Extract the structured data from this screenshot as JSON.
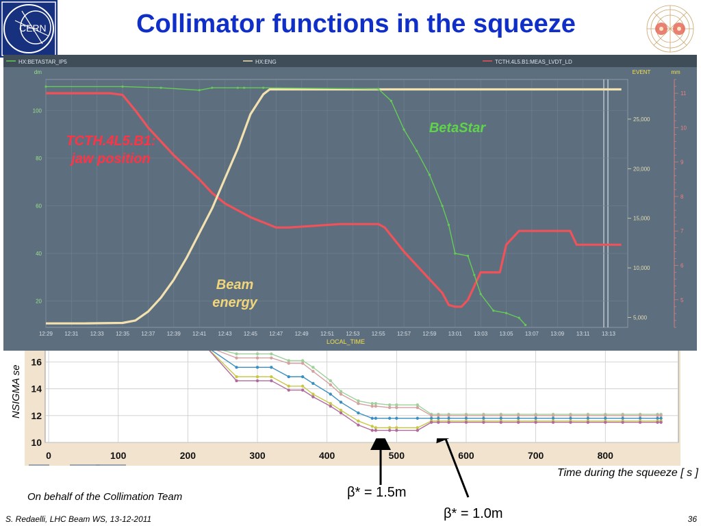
{
  "slide": {
    "title": "Collimator functions in the squeeze",
    "collab": "On behalf of the Collimation Team",
    "footer_left": "S. Redaelli, LHC Beam WS, 13-12-2011",
    "footer_right": "36",
    "beta_annotation_1": "β* = 1.5m",
    "beta_annotation_2": "β* = 1.0m",
    "cern_logo_text": "CERN"
  },
  "colors": {
    "title": "#0f2fc8",
    "chart_bg": "#5d6f7f",
    "chart_frame": "#3f4d59",
    "jaw": "#f0525a",
    "energy": "#f3e2b0",
    "betastar": "#66cc55",
    "axis_text_left": "#9be08a",
    "axis_text_right_mid": "#e6ddb0",
    "axis_text_right": "#f08080",
    "bottom_grid": "#c9c9c9",
    "bottom_frame": "#f2e3cf"
  },
  "chart_data": [
    {
      "type": "line",
      "legend": [
        "HX:BETASTAR_IP5",
        "HX:ENG",
        "TCTH.4L5.B1:MEAS_LVDT_LD"
      ],
      "xlabel": "LOCAL_TIME",
      "x_ticks": [
        "12:29",
        "12:31",
        "12:33",
        "12:35",
        "12:37",
        "12:39",
        "12:41",
        "12:43",
        "12:45",
        "12:47",
        "12:49",
        "12:51",
        "12:53",
        "12:55",
        "12:57",
        "12:59",
        "13:01",
        "13:03",
        "13:05",
        "13:07",
        "13:09",
        "13:11",
        "13:13"
      ],
      "left_axis": {
        "unit": "dm",
        "ticks": [
          20,
          40,
          60,
          80,
          100
        ],
        "range": [
          9,
          113
        ]
      },
      "mid_axis": {
        "unit": "EVENT",
        "ticks": [
          "5,000",
          "10,000",
          "15,000",
          "20,000",
          "25,000"
        ],
        "range": [
          4000,
          29000
        ]
      },
      "right_axis": {
        "unit": "mm",
        "ticks": [
          5,
          6,
          7,
          8,
          9,
          10,
          11
        ],
        "range": [
          4.2,
          11.4
        ]
      },
      "annotations": {
        "jaw": "TCTH.4L5.B1:\njaw position",
        "energy": "Beam\nenergy",
        "betastar": "BetaStar"
      },
      "series": [
        {
          "name": "TCTH.4L5.B1:MEAS_LVDT_LD",
          "axis": "right",
          "points": [
            [
              "12:29",
              11
            ],
            [
              "12:32",
              11
            ],
            [
              "12:34",
              11
            ],
            [
              "12:35",
              10.95
            ],
            [
              "12:36",
              10.5
            ],
            [
              "12:37",
              10.0
            ],
            [
              "12:39",
              9.2
            ],
            [
              "12:41",
              8.5
            ],
            [
              "12:42",
              8.1
            ],
            [
              "12:43",
              7.8
            ],
            [
              "12:45",
              7.4
            ],
            [
              "12:47",
              7.1
            ],
            [
              "12:48",
              7.1
            ],
            [
              "12:50",
              7.15
            ],
            [
              "12:52",
              7.2
            ],
            [
              "12:53",
              7.2
            ],
            [
              "12:55",
              7.2
            ],
            [
              "12:55.5",
              7.1
            ],
            [
              "12:57",
              6.4
            ],
            [
              "12:59",
              5.6
            ],
            [
              "13:00",
              5.2
            ],
            [
              "13:00.5",
              4.85
            ],
            [
              "13:01",
              4.8
            ],
            [
              "13:01.5",
              4.8
            ],
            [
              "13:02",
              5.0
            ],
            [
              "13:03",
              5.8
            ],
            [
              "13:04",
              5.8
            ],
            [
              "13:04.5",
              5.8
            ],
            [
              "13:05",
              6.6
            ],
            [
              "13:06",
              7.0
            ],
            [
              "13:07",
              7.0
            ],
            [
              "13:09",
              7.0
            ],
            [
              "13:10",
              7.0
            ],
            [
              "13:10.5",
              6.6
            ],
            [
              "13:12",
              6.6
            ],
            [
              "13:14",
              6.6
            ]
          ]
        },
        {
          "name": "HX:ENG",
          "axis": "mid",
          "points": [
            [
              "12:29",
              4400
            ],
            [
              "12:32",
              4400
            ],
            [
              "12:35",
              4450
            ],
            [
              "12:36",
              4700
            ],
            [
              "12:37",
              5600
            ],
            [
              "12:38",
              7000
            ],
            [
              "12:39",
              8800
            ],
            [
              "12:40",
              11000
            ],
            [
              "12:41",
              13500
            ],
            [
              "12:42",
              16000
            ],
            [
              "12:43",
              19000
            ],
            [
              "12:44",
              22000
            ],
            [
              "12:45",
              25500
            ],
            [
              "12:46",
              27500
            ],
            [
              "12:46.5",
              28000
            ],
            [
              "12:48",
              28000
            ],
            [
              "12:55",
              28000
            ],
            [
              "13:05",
              28000
            ],
            [
              "13:14",
              28000
            ]
          ]
        },
        {
          "name": "HX:BETASTAR_IP5",
          "axis": "left",
          "points": [
            [
              "12:29",
              110
            ],
            [
              "12:35",
              110
            ],
            [
              "12:38",
              109.5
            ],
            [
              "12:41",
              108.5
            ],
            [
              "12:42",
              109.5
            ],
            [
              "12:44",
              109.5
            ],
            [
              "12:44.5",
              109.5
            ],
            [
              "12:46",
              109.5
            ],
            [
              "12:55",
              109
            ],
            [
              "12:56",
              104
            ],
            [
              "12:57",
              92
            ],
            [
              "12:58",
              83
            ],
            [
              "12:59",
              73
            ],
            [
              "13:00",
              60
            ],
            [
              "13:00.5",
              52
            ],
            [
              "13:01",
              40
            ],
            [
              "13:02",
              39
            ],
            [
              "13:02.5",
              31
            ],
            [
              "13:03",
              23
            ],
            [
              "13:04",
              16
            ],
            [
              "13:05",
              15
            ],
            [
              "13:06",
              13
            ],
            [
              "13:06.5",
              10
            ]
          ]
        }
      ]
    },
    {
      "type": "line",
      "xlabel": "Time during the squeeze [ s ]",
      "ylabel": "NSIGMA se",
      "x_ticks": [
        0,
        100,
        200,
        300,
        400,
        500,
        600,
        700,
        800
      ],
      "y_ticks": [
        10,
        12,
        14,
        16
      ],
      "xlim": [
        -5,
        905
      ],
      "ylim": [
        10,
        17.2
      ],
      "series": [
        {
          "color": "#9fd09a",
          "points": [
            [
              225,
              17.2
            ],
            [
              270,
              16.6
            ],
            [
              300,
              16.6
            ],
            [
              320,
              16.6
            ],
            [
              345,
              16.1
            ],
            [
              365,
              16.1
            ],
            [
              380,
              15.6
            ],
            [
              405,
              14.6
            ],
            [
              420,
              13.8
            ],
            [
              445,
              13.1
            ],
            [
              465,
              12.9
            ],
            [
              470,
              12.9
            ],
            [
              490,
              12.8
            ],
            [
              500,
              12.8
            ],
            [
              530,
              12.8
            ],
            [
              550,
              12.1
            ],
            [
              560,
              12.1
            ],
            [
              880,
              12.1
            ]
          ]
        },
        {
          "color": "#d5a0a0",
          "points": [
            [
              225,
              17.2
            ],
            [
              270,
              16.3
            ],
            [
              300,
              16.3
            ],
            [
              320,
              16.3
            ],
            [
              345,
              15.9
            ],
            [
              365,
              15.9
            ],
            [
              380,
              15.3
            ],
            [
              405,
              14.3
            ],
            [
              420,
              13.6
            ],
            [
              445,
              12.9
            ],
            [
              465,
              12.7
            ],
            [
              470,
              12.7
            ],
            [
              490,
              12.6
            ],
            [
              500,
              12.6
            ],
            [
              530,
              12.6
            ],
            [
              550,
              12.0
            ],
            [
              560,
              12.0
            ],
            [
              880,
              12.0
            ]
          ]
        },
        {
          "color": "#3a8fc0",
          "points": [
            [
              225,
              17.2
            ],
            [
              270,
              15.6
            ],
            [
              300,
              15.6
            ],
            [
              320,
              15.6
            ],
            [
              345,
              14.9
            ],
            [
              365,
              14.9
            ],
            [
              380,
              14.4
            ],
            [
              405,
              13.6
            ],
            [
              420,
              13.0
            ],
            [
              445,
              12.2
            ],
            [
              465,
              11.8
            ],
            [
              470,
              11.8
            ],
            [
              490,
              11.8
            ],
            [
              500,
              11.8
            ],
            [
              530,
              11.8
            ],
            [
              550,
              11.8
            ],
            [
              560,
              11.8
            ],
            [
              880,
              11.8
            ]
          ]
        },
        {
          "color": "#c8c848",
          "points": [
            [
              225,
              17.2
            ],
            [
              270,
              14.9
            ],
            [
              300,
              14.9
            ],
            [
              320,
              14.9
            ],
            [
              345,
              14.2
            ],
            [
              365,
              14.2
            ],
            [
              380,
              13.6
            ],
            [
              405,
              12.9
            ],
            [
              420,
              12.4
            ],
            [
              445,
              11.6
            ],
            [
              465,
              11.2
            ],
            [
              470,
              11.1
            ],
            [
              490,
              11.1
            ],
            [
              500,
              11.1
            ],
            [
              530,
              11.1
            ],
            [
              550,
              11.6
            ],
            [
              560,
              11.6
            ],
            [
              880,
              11.6
            ]
          ]
        },
        {
          "color": "#b06a9c",
          "points": [
            [
              225,
              17.2
            ],
            [
              270,
              14.6
            ],
            [
              300,
              14.6
            ],
            [
              320,
              14.6
            ],
            [
              345,
              13.9
            ],
            [
              365,
              13.9
            ],
            [
              380,
              13.4
            ],
            [
              405,
              12.7
            ],
            [
              420,
              12.2
            ],
            [
              445,
              11.3
            ],
            [
              465,
              10.9
            ],
            [
              470,
              10.9
            ],
            [
              490,
              10.9
            ],
            [
              500,
              10.9
            ],
            [
              530,
              10.9
            ],
            [
              550,
              11.5
            ],
            [
              560,
              11.5
            ],
            [
              880,
              11.5
            ]
          ]
        }
      ]
    }
  ]
}
